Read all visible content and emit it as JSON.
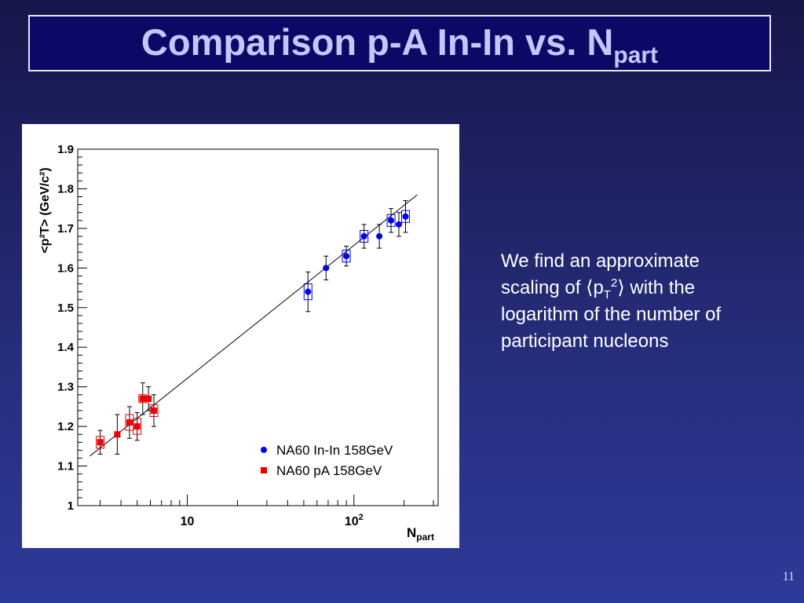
{
  "slide": {
    "title_main": "Comparison p-A In-In vs. N",
    "title_sub": "part",
    "note_line1_a": "We find an approximate",
    "note_line2_a": "scaling of ",
    "note_open": "⟨",
    "note_p": "p",
    "note_sub": "T",
    "note_sup": "2",
    "note_close": "⟩",
    "note_line2_b": " with the",
    "note_line3": "logarithm of the number of",
    "note_line4": "participant nucleons",
    "page_number": "11"
  },
  "chart_data": {
    "type": "scatter",
    "x_scale": "log",
    "xlim": [
      2.2,
      320
    ],
    "ylim": [
      1.0,
      1.9
    ],
    "xlabel_main": "N",
    "xlabel_sub": "part",
    "ylabel": "<p²T> (GeV/c²)",
    "y_ticks": [
      "1",
      "1.1",
      "1.2",
      "1.3",
      "1.4",
      "1.5",
      "1.6",
      "1.7",
      "1.8",
      "1.9"
    ],
    "x_tick_labels": [
      {
        "x": 10,
        "base": "10",
        "exp": ""
      },
      {
        "x": 100,
        "base": "10",
        "exp": "2"
      }
    ],
    "grid": false,
    "legend_position": "bottom-right",
    "fit_line": {
      "x": [
        2.6,
        240
      ],
      "y": [
        1.125,
        1.785
      ]
    },
    "series": [
      {
        "name": "NA60 In-In 158GeV",
        "color": "#0000ee",
        "marker": "circle",
        "points": [
          {
            "x": 53,
            "y": 1.54,
            "err": 0.05,
            "sys": 0.02
          },
          {
            "x": 68,
            "y": 1.6,
            "err": 0.03,
            "sys": 0.0
          },
          {
            "x": 90,
            "y": 1.63,
            "err": 0.025,
            "sys": 0.015
          },
          {
            "x": 115,
            "y": 1.68,
            "err": 0.03,
            "sys": 0.015
          },
          {
            "x": 142,
            "y": 1.68,
            "err": 0.03,
            "sys": 0.0
          },
          {
            "x": 167,
            "y": 1.72,
            "err": 0.03,
            "sys": 0.015
          },
          {
            "x": 186,
            "y": 1.71,
            "err": 0.03,
            "sys": 0.0
          },
          {
            "x": 204,
            "y": 1.73,
            "err": 0.04,
            "sys": 0.015
          }
        ]
      },
      {
        "name": "NA60 pA 158GeV",
        "color": "#ee0000",
        "marker": "square",
        "points": [
          {
            "x": 3.0,
            "y": 1.16,
            "err": 0.03,
            "sys": 0.015
          },
          {
            "x": 3.8,
            "y": 1.18,
            "err": 0.05,
            "sys": 0.0
          },
          {
            "x": 4.5,
            "y": 1.21,
            "err": 0.04,
            "sys": 0.02
          },
          {
            "x": 5.0,
            "y": 1.2,
            "err": 0.035,
            "sys": 0.02
          },
          {
            "x": 5.4,
            "y": 1.27,
            "err": 0.04,
            "sys": 0.01
          },
          {
            "x": 5.85,
            "y": 1.27,
            "err": 0.03,
            "sys": 0.0
          },
          {
            "x": 6.3,
            "y": 1.24,
            "err": 0.04,
            "sys": 0.015
          }
        ]
      }
    ]
  }
}
